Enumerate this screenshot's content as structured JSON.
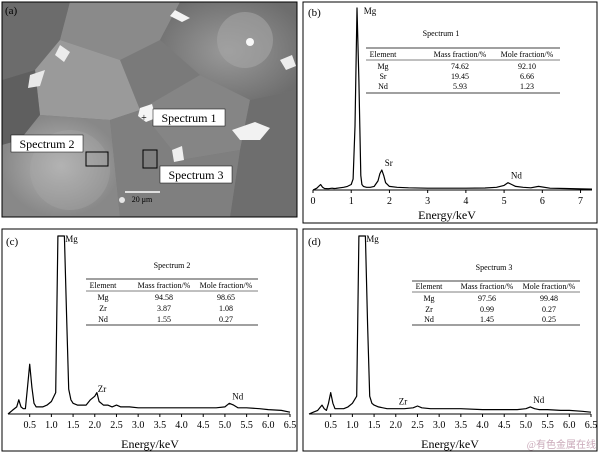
{
  "panels": [
    {
      "letter": "(a)",
      "micrograph": {
        "labels": [
          {
            "name": "spectrum-1-label",
            "text": "Spectrum 1"
          },
          {
            "name": "spectrum-2-label",
            "text": "Spectrum 2"
          },
          {
            "name": "spectrum-3-label",
            "text": "Spectrum 3"
          }
        ],
        "scale_bar_text": "20 μm"
      }
    },
    {
      "letter": "(b)",
      "xlabel": "Energy/keV",
      "table": {
        "title": "Spectrum 1",
        "headers": [
          "Element",
          "Mass fraction/%",
          "Mole fraction/%"
        ],
        "rows": [
          [
            "Mg",
            "74.62",
            "92.10"
          ],
          [
            "Sr",
            "19.45",
            "6.66"
          ],
          [
            "Nd",
            "5.93",
            "1.23"
          ]
        ]
      }
    },
    {
      "letter": "(c)",
      "xlabel": "Energy/keV",
      "table": {
        "title": "Spectrum 2",
        "headers": [
          "Element",
          "Mass fraction/%",
          "Mole fraction/%"
        ],
        "rows": [
          [
            "Mg",
            "94.58",
            "98.65"
          ],
          [
            "Zr",
            "3.87",
            "1.08"
          ],
          [
            "Nd",
            "1.55",
            "0.27"
          ]
        ]
      }
    },
    {
      "letter": "(d)",
      "xlabel": "Energy/keV",
      "table": {
        "title": "Spectrum 3",
        "headers": [
          "Element",
          "Mass fraction/%",
          "Mole fraction/%"
        ],
        "rows": [
          [
            "Mg",
            "97.56",
            "99.48"
          ],
          [
            "Zr",
            "0.99",
            "0.27"
          ],
          [
            "Nd",
            "1.45",
            "0.25"
          ]
        ]
      }
    }
  ],
  "watermark": "@有色金属在线",
  "chart_data": [
    {
      "type": "line",
      "panel": "(b)",
      "xlabel": "Energy/keV",
      "ylabel": "",
      "xlim": [
        0,
        7.3
      ],
      "ylim": [
        0,
        100
      ],
      "xticks": [
        0,
        1,
        2,
        3,
        4,
        5,
        6,
        7
      ],
      "series": [
        {
          "x": [
            0,
            0.1,
            0.2,
            0.25,
            0.3,
            0.4,
            0.5,
            0.55,
            0.6,
            0.7,
            0.8,
            0.9,
            1.0,
            1.05,
            1.1,
            1.15,
            1.2,
            1.25,
            1.28,
            1.32,
            1.4,
            1.5,
            1.6,
            1.7,
            1.75,
            1.8,
            1.85,
            1.9,
            2.0,
            2.2,
            2.5,
            3.0,
            3.5,
            4.0,
            4.5,
            4.8,
            5.0,
            5.1,
            5.2,
            5.3,
            5.5,
            5.7,
            5.9,
            6.2,
            6.6,
            7.0,
            7.3
          ],
          "y": [
            0,
            1,
            3,
            1.5,
            0.8,
            0.7,
            1,
            0.8,
            0.9,
            1.2,
            1.5,
            2,
            3,
            6,
            35,
            100,
            60,
            8,
            3,
            2,
            1.5,
            1.5,
            2,
            5,
            9,
            11,
            8,
            4,
            2,
            1.5,
            1.2,
            1,
            1,
            1,
            1.1,
            1.5,
            2.5,
            4,
            3,
            2,
            1.5,
            1.2,
            2,
            1,
            0.8,
            0.6,
            0.5
          ]
        }
      ],
      "annotations": [
        {
          "text": "Mg",
          "x": 1.25,
          "y": 100
        },
        {
          "text": "Sr",
          "x": 1.8,
          "y": 11
        },
        {
          "text": "Nd",
          "x": 5.1,
          "y": 4
        }
      ]
    },
    {
      "type": "line",
      "panel": "(c)",
      "xlabel": "Energy/keV",
      "ylabel": "",
      "xlim": [
        0,
        6.5
      ],
      "ylim": [
        0,
        100
      ],
      "xticks": [
        0.5,
        1.0,
        1.5,
        2.0,
        2.5,
        3.0,
        3.5,
        4.0,
        4.5,
        5.0,
        5.5,
        6.0,
        6.5
      ],
      "series": [
        {
          "x": [
            0,
            0.1,
            0.2,
            0.25,
            0.3,
            0.35,
            0.4,
            0.45,
            0.5,
            0.55,
            0.6,
            0.65,
            0.7,
            0.8,
            0.9,
            1.0,
            1.1,
            1.15,
            1.2,
            1.25,
            1.3,
            1.35,
            1.4,
            1.45,
            1.5,
            1.6,
            1.7,
            1.8,
            1.9,
            2.0,
            2.05,
            2.1,
            2.2,
            2.3,
            2.4,
            2.5,
            2.6,
            2.8,
            3.0,
            3.5,
            4.0,
            4.5,
            4.8,
            5.0,
            5.1,
            5.2,
            5.3,
            5.5,
            5.8,
            6.0,
            6.3,
            6.5
          ],
          "y": [
            0,
            2,
            4,
            8,
            4,
            3,
            3,
            15,
            28,
            15,
            6,
            4,
            4,
            4,
            5,
            7,
            12,
            100,
            100,
            100,
            100,
            55,
            14,
            8,
            6,
            5,
            5,
            5,
            8,
            10,
            12,
            7,
            5,
            5,
            4,
            5,
            4,
            4,
            3.5,
            3.5,
            3.5,
            3.5,
            3.5,
            4,
            6,
            5,
            3.5,
            3.5,
            3,
            2.5,
            2,
            1
          ]
        }
      ],
      "annotations": [
        {
          "text": "Mg",
          "x": 1.25,
          "y": 100
        },
        {
          "text": "Zr",
          "x": 2.0,
          "y": 10
        },
        {
          "text": "Nd",
          "x": 5.1,
          "y": 6
        }
      ]
    },
    {
      "type": "line",
      "panel": "(d)",
      "xlabel": "Energy/keV",
      "ylabel": "",
      "xlim": [
        0,
        6.5
      ],
      "ylim": [
        0,
        100
      ],
      "xticks": [
        0.5,
        1.0,
        1.5,
        2.0,
        2.5,
        3.0,
        3.5,
        4.0,
        4.5,
        5.0,
        5.5,
        6.0,
        6.5
      ],
      "series": [
        {
          "x": [
            0,
            0.1,
            0.2,
            0.3,
            0.35,
            0.4,
            0.45,
            0.5,
            0.55,
            0.6,
            0.7,
            0.8,
            0.9,
            1.0,
            1.1,
            1.15,
            1.2,
            1.25,
            1.3,
            1.35,
            1.4,
            1.45,
            1.5,
            1.6,
            1.8,
            2.0,
            2.2,
            2.4,
            2.5,
            2.6,
            2.8,
            3.0,
            3.5,
            4.0,
            4.5,
            4.8,
            5.0,
            5.1,
            5.2,
            5.3,
            5.5,
            5.8,
            6.0,
            6.3,
            6.5
          ],
          "y": [
            0,
            1,
            2,
            5,
            3,
            2,
            6,
            12,
            6,
            3,
            3,
            3,
            4,
            6,
            10,
            100,
            100,
            100,
            100,
            50,
            10,
            6,
            5,
            4,
            3,
            3,
            3,
            3.5,
            4.5,
            3.5,
            3,
            3,
            3,
            2.5,
            2.5,
            2.5,
            3,
            4,
            3,
            2.5,
            2.5,
            2,
            2,
            1.5,
            1
          ]
        }
      ],
      "annotations": [
        {
          "text": "Mg",
          "x": 1.25,
          "y": 100
        },
        {
          "text": "Zr",
          "x": 2.0,
          "y": 3
        },
        {
          "text": "Nd",
          "x": 5.1,
          "y": 4
        }
      ]
    }
  ]
}
